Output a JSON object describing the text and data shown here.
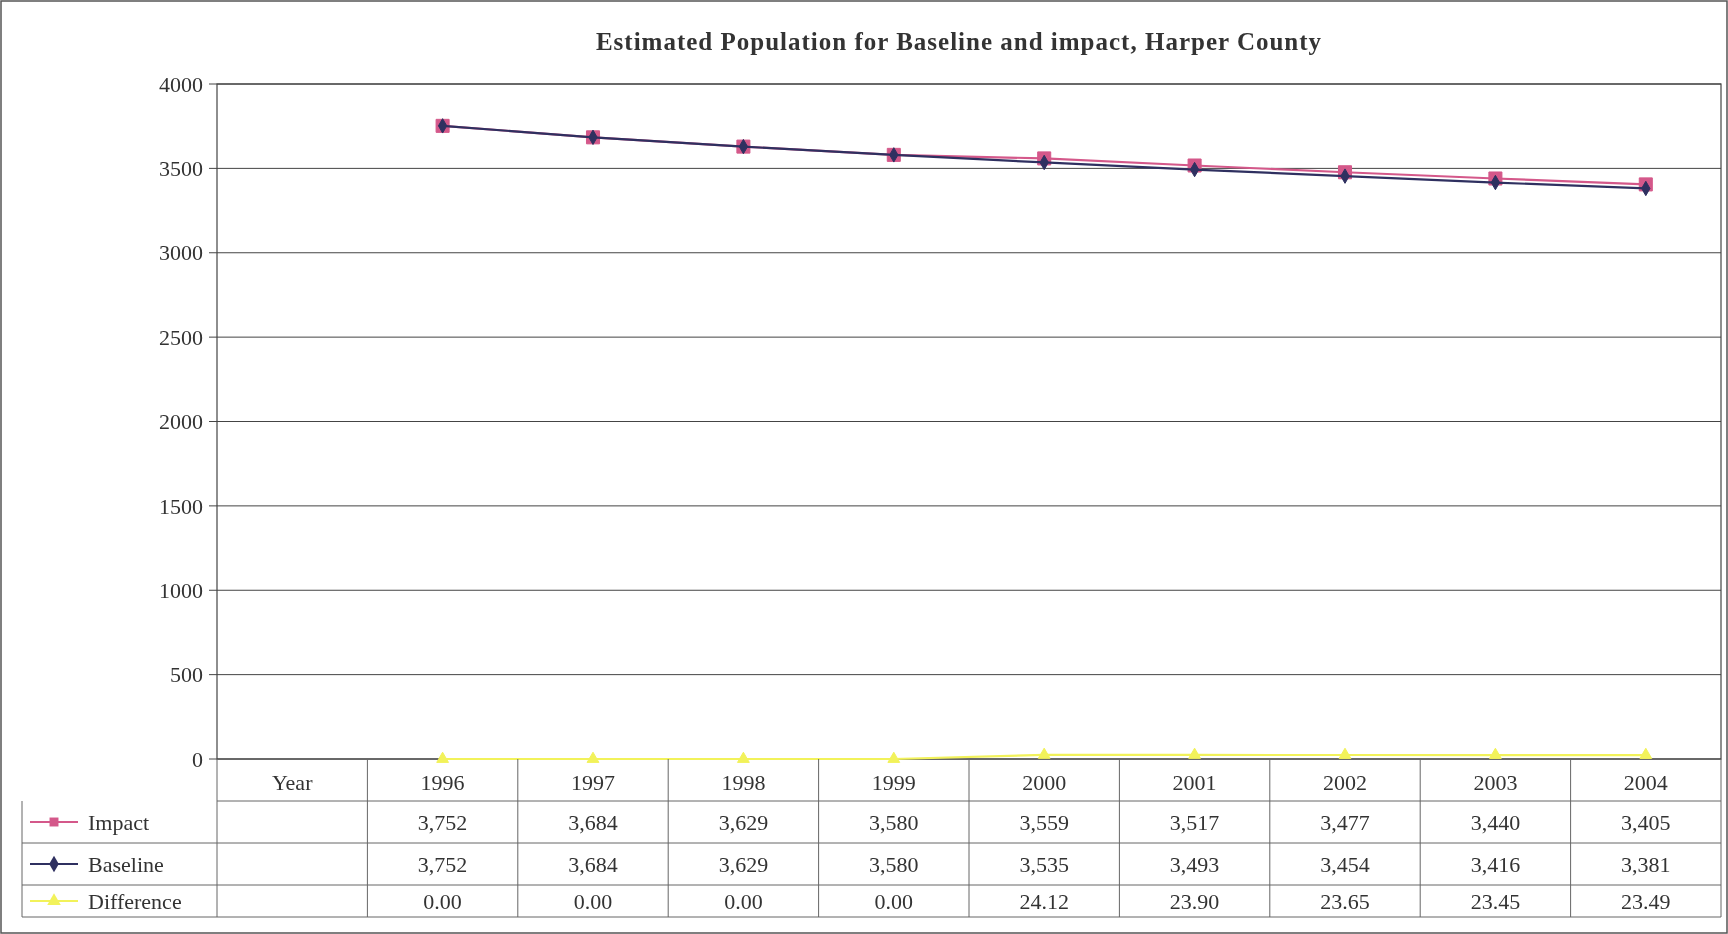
{
  "chart_data": {
    "type": "line",
    "title": "Estimated Population for Baseline and impact, Harper County",
    "categories": [
      "Year",
      "1996",
      "1997",
      "1998",
      "1999",
      "2000",
      "2001",
      "2002",
      "2003",
      "2004"
    ],
    "ylim": [
      0,
      4000
    ],
    "yticks": [
      0,
      500,
      1000,
      1500,
      2000,
      2500,
      3000,
      3500,
      4000
    ],
    "grid": "y",
    "legend": "bottom",
    "series": [
      {
        "name": "Impact",
        "color": "#d4588a",
        "marker": "square",
        "values": [
          null,
          3752,
          3684,
          3629,
          3580,
          3559,
          3517,
          3477,
          3440,
          3405
        ],
        "value_labels": [
          null,
          "3,752",
          "3,684",
          "3,629",
          "3,580",
          "3,559",
          "3,517",
          "3,477",
          "3,440",
          "3,405"
        ]
      },
      {
        "name": "Baseline",
        "color": "#2f3060",
        "marker": "diamond",
        "values": [
          null,
          3752,
          3684,
          3629,
          3580,
          3535,
          3493,
          3454,
          3416,
          3381
        ],
        "value_labels": [
          null,
          "3,752",
          "3,684",
          "3,629",
          "3,580",
          "3,535",
          "3,493",
          "3,454",
          "3,416",
          "3,381"
        ]
      },
      {
        "name": "Difference",
        "color": "#f2f25a",
        "marker": "triangle",
        "values": [
          null,
          0,
          0,
          0,
          0,
          24.12,
          23.9,
          23.65,
          23.45,
          23.49
        ],
        "value_labels": [
          null,
          "0.00",
          "0.00",
          "0.00",
          "0.00",
          "24.12",
          "23.90",
          "23.65",
          "23.45",
          "23.49"
        ]
      }
    ]
  }
}
